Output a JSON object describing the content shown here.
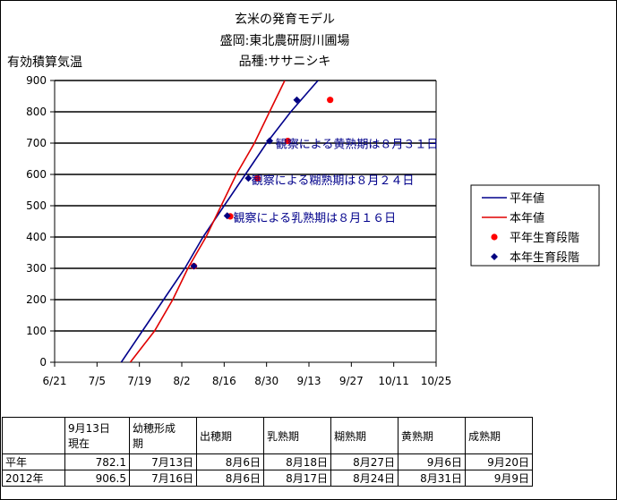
{
  "chart_data": {
    "type": "line",
    "title_lines": [
      "玄米の発育モデル",
      "盛岡:東北農研厨川圃場",
      "品種:ササニシキ"
    ],
    "ylabel": "有効積算気温",
    "ylim": [
      0,
      900
    ],
    "yticks": [
      0,
      100,
      200,
      300,
      400,
      500,
      600,
      700,
      800,
      900
    ],
    "xlim": [
      "2012-06-21",
      "2012-10-25"
    ],
    "xtick_labels": [
      "6/21",
      "7/5",
      "7/19",
      "8/2",
      "8/16",
      "8/30",
      "9/13",
      "9/27",
      "10/11",
      "10/25"
    ],
    "xtick_dates": [
      "2012-06-21",
      "2012-07-05",
      "2012-07-19",
      "2012-08-02",
      "2012-08-16",
      "2012-08-30",
      "2012-09-13",
      "2012-09-27",
      "2012-10-11",
      "2012-10-25"
    ],
    "grid": "horizontal",
    "legend_position": "right",
    "series": [
      {
        "name": "平年値",
        "kind": "line",
        "color": "#00008b",
        "points": [
          [
            "2012-07-13",
            0
          ],
          [
            "2012-07-20",
            100
          ],
          [
            "2012-07-27",
            200
          ],
          [
            "2012-08-03",
            300
          ],
          [
            "2012-08-09",
            400
          ],
          [
            "2012-08-16",
            500
          ],
          [
            "2012-08-23",
            600
          ],
          [
            "2012-08-30",
            700
          ],
          [
            "2012-09-07",
            800
          ],
          [
            "2012-09-16",
            900
          ]
        ]
      },
      {
        "name": "本年値",
        "kind": "line",
        "color": "#e00000",
        "points": [
          [
            "2012-07-16",
            0
          ],
          [
            "2012-07-24",
            100
          ],
          [
            "2012-07-30",
            200
          ],
          [
            "2012-08-04",
            300
          ],
          [
            "2012-08-10",
            400
          ],
          [
            "2012-08-15",
            500
          ],
          [
            "2012-08-20",
            600
          ],
          [
            "2012-08-26",
            700
          ],
          [
            "2012-08-31",
            800
          ],
          [
            "2012-09-05",
            900
          ]
        ]
      },
      {
        "name": "平年生育段階",
        "kind": "marker",
        "marker": "circle",
        "color": "#ff0000",
        "points": [
          [
            "2012-08-06",
            307
          ],
          [
            "2012-08-18",
            466
          ],
          [
            "2012-08-27",
            587
          ],
          [
            "2012-09-06",
            707
          ],
          [
            "2012-09-20",
            838
          ]
        ]
      },
      {
        "name": "本年生育段階",
        "kind": "marker",
        "marker": "diamond",
        "color": "#000080",
        "points": [
          [
            "2012-08-06",
            307
          ],
          [
            "2012-08-17",
            468
          ],
          [
            "2012-08-24",
            588
          ],
          [
            "2012-08-31",
            707
          ],
          [
            "2012-09-09",
            838
          ]
        ]
      }
    ],
    "annotations": [
      {
        "text": "観察による黄熟期は８月３１日",
        "x": "2012-09-02",
        "y": 685
      },
      {
        "text": "観察による糊熟期は８月２４日",
        "x": "2012-08-25",
        "y": 568
      },
      {
        "text": "観察による乳熟期は８月１６日",
        "x": "2012-08-19",
        "y": 448
      }
    ]
  },
  "table": {
    "headers": [
      "",
      "9月13日\n現在",
      "幼穂形成\n期",
      "出穂期",
      "乳熟期",
      "糊熟期",
      "黄熟期",
      "成熟期"
    ],
    "rows": [
      [
        "平年",
        "782.1",
        "7月13日",
        "8月6日",
        "8月18日",
        "8月27日",
        "9月6日",
        "9月20日"
      ],
      [
        "2012年",
        "906.5",
        "7月16日",
        "8月6日",
        "8月17日",
        "8月24日",
        "8月31日",
        "9月9日"
      ]
    ]
  }
}
